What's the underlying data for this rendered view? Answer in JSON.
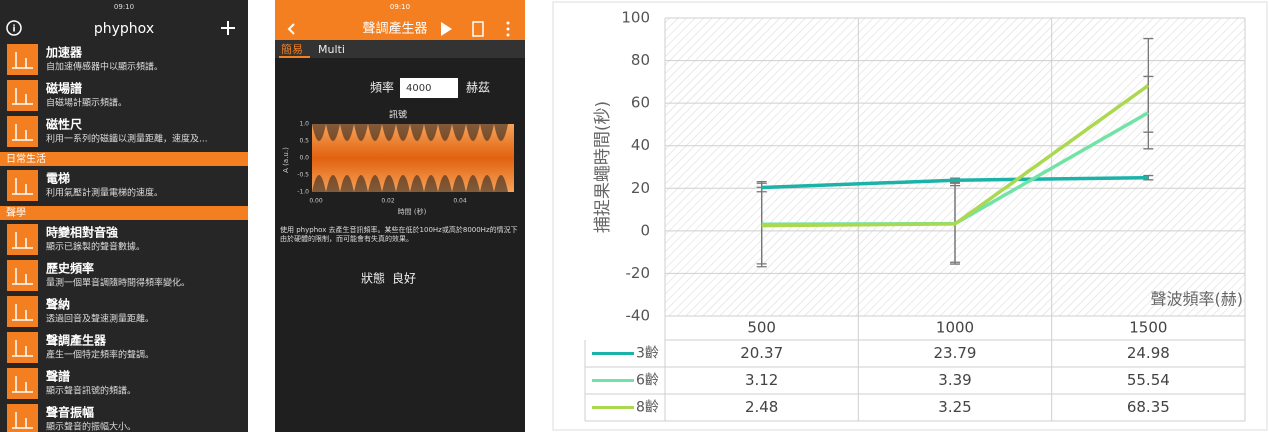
{
  "left_app": {
    "status_time": "09:10",
    "title": "phyphox",
    "groups": [
      {
        "items": [
          {
            "title": "加速器",
            "desc": "自加速傳感器中以顯示頻譜。"
          },
          {
            "title": "磁場譜",
            "desc": "自磁場計顯示頻譜。"
          },
          {
            "title": "磁性尺",
            "desc": "利用一系列的磁鐵以測量距離，速度及..."
          }
        ]
      },
      {
        "name": "日常生活",
        "items": [
          {
            "title": "電梯",
            "desc": "利用氣壓計測量電梯的速度。"
          }
        ]
      },
      {
        "name": "聲學",
        "items": [
          {
            "title": "時變相對音強",
            "desc": "顯示已錄製的聲音數據。"
          },
          {
            "title": "歷史頻率",
            "desc": "量測一個單音調隨時間得頻率變化。"
          },
          {
            "title": "聲納",
            "desc": "透過回音及聲速測量距離。"
          },
          {
            "title": "聲調產生器",
            "desc": "產生一個特定頻率的聲調。"
          },
          {
            "title": "聲譜",
            "desc": "顯示聲音訊號的頻譜。"
          },
          {
            "title": "聲音振幅",
            "desc": "顯示聲音的振幅大小。"
          }
        ]
      }
    ]
  },
  "middle_app": {
    "status_time": "09:10",
    "title": "聲調產生器",
    "tabs": [
      "簡易",
      "Multi"
    ],
    "frequency_label": "頻率",
    "frequency_value": "4000",
    "frequency_unit": "赫茲",
    "plot": {
      "title": "訊號",
      "y_label": "A (a.u.)",
      "x_label": "時間 (秒)",
      "y_ticks": [
        "1.0",
        "0.5",
        "0.0",
        "-0.5",
        "-1.0"
      ],
      "x_ticks": [
        "0.00",
        "0.02",
        "0.04"
      ]
    },
    "description": "使用 phyphox 去產生音訊頻率。某些在低於100Hz或高於8000Hz的情況下由於硬體的限制，而可能會有失真的效果。",
    "status_label": "狀態",
    "status_value": "良好"
  },
  "chart_data": {
    "type": "line",
    "y_label": "捕捉果蠅時間(秒)",
    "x_label": "聲波頻率(赫)",
    "categories": [
      "500",
      "1000",
      "1500"
    ],
    "ylim": [
      -40,
      100
    ],
    "yticks": [
      -40,
      -20,
      0,
      20,
      40,
      60,
      80,
      100
    ],
    "grid": true,
    "series": [
      {
        "name": "3齡",
        "color": "#1bb3a8",
        "values": [
          20.37,
          23.79,
          24.98
        ],
        "errors": [
          2,
          1,
          1
        ]
      },
      {
        "name": "6齡",
        "color": "#72e3a6",
        "values": [
          3.12,
          3.39,
          55.54
        ],
        "errors": [
          20,
          19,
          17
        ]
      },
      {
        "name": "8齡",
        "color": "#aad84e",
        "values": [
          2.48,
          3.25,
          68.35
        ],
        "errors": [
          18,
          18,
          22
        ]
      }
    ]
  }
}
